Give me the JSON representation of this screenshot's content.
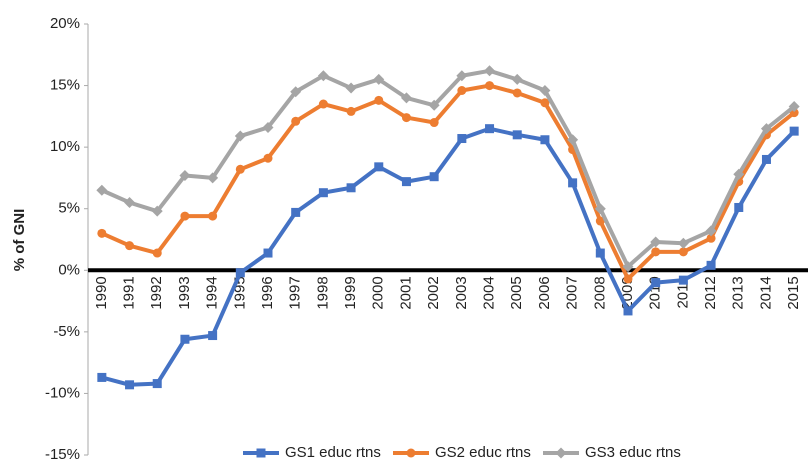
{
  "chart_data": {
    "type": "line",
    "y_label": "% of GNI",
    "categories": [
      "1990",
      "1991",
      "1992",
      "1993",
      "1994",
      "1995",
      "1996",
      "1997",
      "1998",
      "1999",
      "2000",
      "2001",
      "2002",
      "2003",
      "2004",
      "2005",
      "2006",
      "2007",
      "2008",
      "2009",
      "2010",
      "2011",
      "2012",
      "2013",
      "2014",
      "2015"
    ],
    "series": [
      {
        "name": "GS1 educ rtns",
        "color": "#4472c4",
        "marker": "square",
        "values": [
          -8.7,
          -9.3,
          -9.2,
          -5.6,
          -5.3,
          -0.2,
          1.4,
          4.7,
          6.3,
          6.7,
          8.4,
          7.2,
          7.6,
          10.7,
          11.5,
          11.0,
          10.6,
          7.1,
          1.4,
          -3.3,
          -1.0,
          -0.8,
          0.4,
          5.1,
          9.0,
          11.3
        ]
      },
      {
        "name": "GS2 educ rtns",
        "color": "#ed7d31",
        "marker": "circle",
        "values": [
          3.0,
          2.0,
          1.4,
          4.4,
          4.4,
          8.2,
          9.1,
          12.1,
          13.5,
          12.9,
          13.8,
          12.4,
          12.0,
          14.6,
          15.0,
          14.4,
          13.6,
          9.8,
          4.0,
          -0.7,
          1.5,
          1.5,
          2.6,
          7.2,
          11.0,
          12.8
        ]
      },
      {
        "name": "GS3 educ rtns",
        "color": "#a5a5a5",
        "marker": "diamond",
        "values": [
          6.5,
          5.5,
          4.8,
          7.7,
          7.5,
          10.9,
          11.6,
          14.5,
          15.8,
          14.8,
          15.5,
          14.0,
          13.4,
          15.8,
          16.2,
          15.5,
          14.6,
          10.6,
          5.0,
          0.3,
          2.3,
          2.2,
          3.2,
          7.8,
          11.5,
          13.3
        ]
      }
    ],
    "ylim": [
      -15,
      20
    ],
    "yticks": [
      {
        "value": -15,
        "label": "-15%"
      },
      {
        "value": -10,
        "label": "-10%"
      },
      {
        "value": -5,
        "label": "-5%"
      },
      {
        "value": 0,
        "label": "0%"
      },
      {
        "value": 5,
        "label": "5%"
      },
      {
        "value": 10,
        "label": "10%"
      },
      {
        "value": 15,
        "label": "15%"
      },
      {
        "value": 20,
        "label": "20%"
      }
    ],
    "grid": false,
    "legend": "bottom"
  }
}
